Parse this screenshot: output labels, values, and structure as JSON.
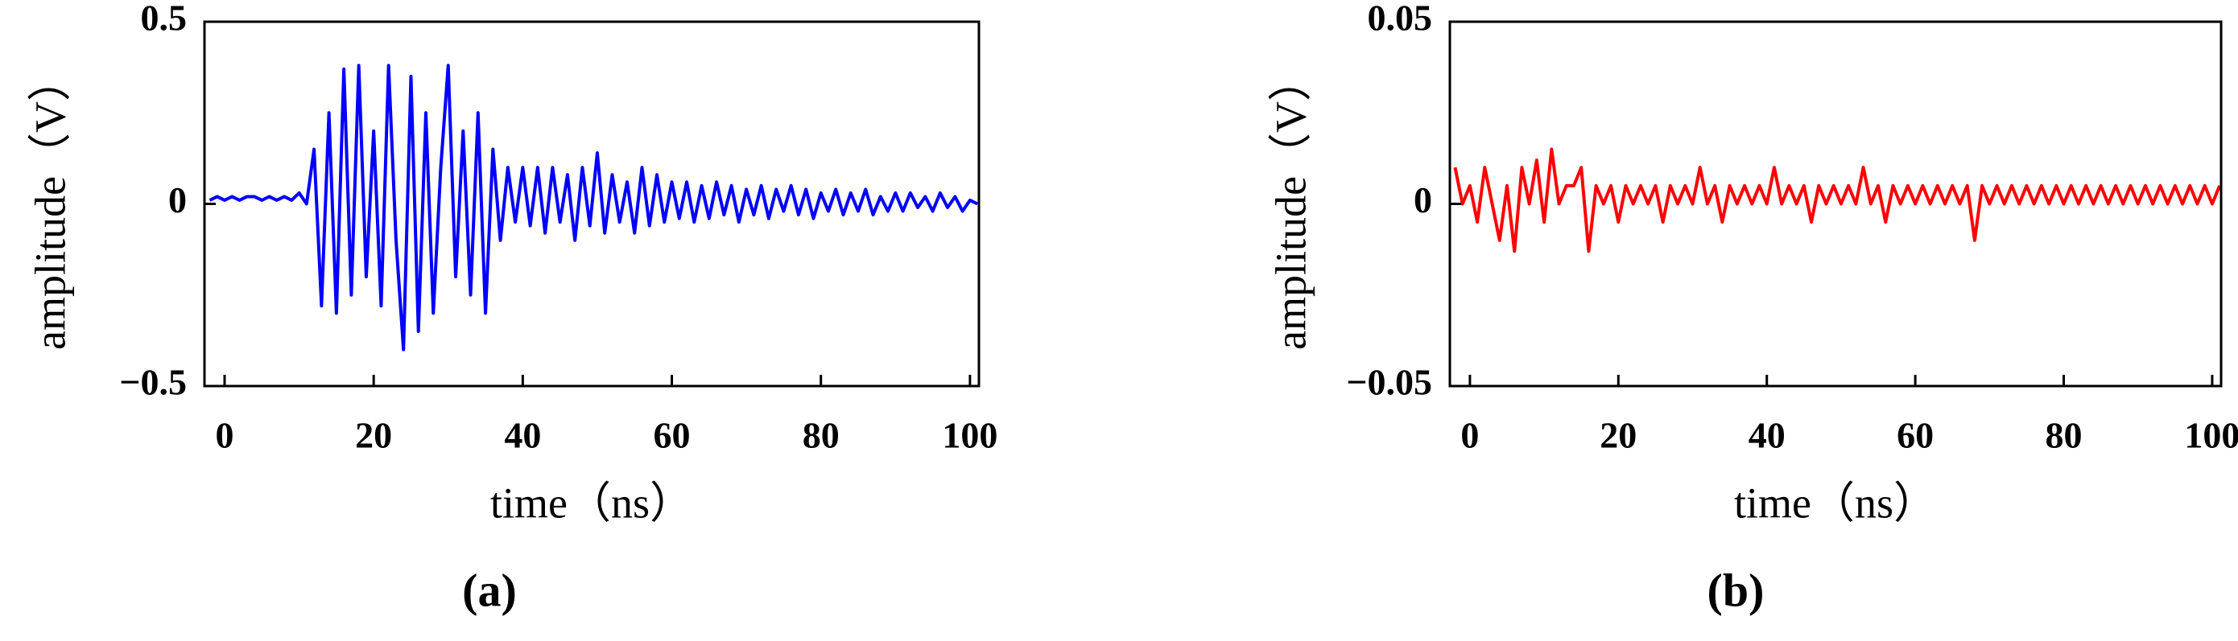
{
  "chart_data": [
    {
      "type": "line",
      "panel_label": "(a)",
      "x_label": "time（ns）",
      "y_label": "amplitude（V）",
      "color": "#0000ff",
      "xlim": [
        -2.7,
        101.2
      ],
      "ylim": [
        -0.5,
        0.5
      ],
      "xticks": [
        0,
        20,
        40,
        60,
        80,
        100
      ],
      "yticks": [
        {
          "value": -0.5,
          "label": "−0.5"
        },
        0,
        0.5
      ],
      "x": [
        -2,
        -1,
        0,
        1,
        2,
        3,
        4,
        5,
        6,
        7,
        8,
        9,
        10,
        11,
        12,
        13,
        14,
        15,
        16,
        17,
        18,
        19,
        20,
        21,
        22,
        23,
        24,
        25,
        26,
        27,
        28,
        29,
        30,
        31,
        32,
        33,
        34,
        35,
        36,
        37,
        38,
        39,
        40,
        41,
        42,
        43,
        44,
        45,
        46,
        47,
        48,
        49,
        50,
        51,
        52,
        53,
        54,
        55,
        56,
        57,
        58,
        59,
        60,
        61,
        62,
        63,
        64,
        65,
        66,
        67,
        68,
        69,
        70,
        71,
        72,
        73,
        74,
        75,
        76,
        77,
        78,
        79,
        80,
        81,
        82,
        83,
        84,
        85,
        86,
        87,
        88,
        89,
        90,
        91,
        92,
        93,
        94,
        95,
        96,
        97,
        98,
        99,
        100,
        101
      ],
      "values": [
        0.01,
        0.02,
        0.01,
        0.02,
        0.01,
        0.02,
        0.02,
        0.01,
        0.02,
        0.01,
        0.02,
        0.01,
        0.03,
        0.0,
        0.15,
        -0.28,
        0.25,
        -0.3,
        0.37,
        -0.25,
        0.38,
        -0.2,
        0.2,
        -0.28,
        0.38,
        -0.1,
        -0.4,
        0.35,
        -0.35,
        0.25,
        -0.3,
        0.1,
        0.38,
        -0.2,
        0.2,
        -0.25,
        0.25,
        -0.3,
        0.15,
        -0.1,
        0.1,
        -0.05,
        0.1,
        -0.06,
        0.1,
        -0.08,
        0.1,
        -0.05,
        0.08,
        -0.1,
        0.1,
        -0.06,
        0.14,
        -0.08,
        0.08,
        -0.05,
        0.06,
        -0.08,
        0.1,
        -0.06,
        0.08,
        -0.05,
        0.06,
        -0.04,
        0.06,
        -0.05,
        0.05,
        -0.04,
        0.06,
        -0.03,
        0.05,
        -0.05,
        0.04,
        -0.03,
        0.05,
        -0.04,
        0.04,
        -0.02,
        0.05,
        -0.03,
        0.04,
        -0.04,
        0.03,
        -0.02,
        0.04,
        -0.03,
        0.03,
        -0.02,
        0.04,
        -0.03,
        0.02,
        -0.02,
        0.03,
        -0.02,
        0.03,
        -0.01,
        0.02,
        -0.02,
        0.03,
        -0.01,
        0.02,
        -0.02,
        0.01,
        0.0
      ]
    },
    {
      "type": "line",
      "panel_label": "(b)",
      "x_label": "time（ns）",
      "y_label": "amplitude（V）",
      "color": "#ff0000",
      "xlim": [
        -2.7,
        101.2
      ],
      "ylim": [
        -0.05,
        0.05
      ],
      "xticks": [
        0,
        20,
        40,
        60,
        80,
        100
      ],
      "yticks": [
        {
          "value": -0.05,
          "label": "−0.05"
        },
        0,
        0.05
      ],
      "x": [
        -2,
        -1,
        0,
        1,
        2,
        3,
        4,
        5,
        6,
        7,
        8,
        9,
        10,
        11,
        12,
        13,
        14,
        15,
        16,
        17,
        18,
        19,
        20,
        21,
        22,
        23,
        24,
        25,
        26,
        27,
        28,
        29,
        30,
        31,
        32,
        33,
        34,
        35,
        36,
        37,
        38,
        39,
        40,
        41,
        42,
        43,
        44,
        45,
        46,
        47,
        48,
        49,
        50,
        51,
        52,
        53,
        54,
        55,
        56,
        57,
        58,
        59,
        60,
        61,
        62,
        63,
        64,
        65,
        66,
        67,
        68,
        69,
        70,
        71,
        72,
        73,
        74,
        75,
        76,
        77,
        78,
        79,
        80,
        81,
        82,
        83,
        84,
        85,
        86,
        87,
        88,
        89,
        90,
        91,
        92,
        93,
        94,
        95,
        96,
        97,
        98,
        99,
        100,
        101
      ],
      "values": [
        0.01,
        0,
        0.005,
        -0.005,
        0.01,
        0,
        -0.01,
        0.005,
        -0.013,
        0.01,
        0,
        0.012,
        -0.005,
        0.015,
        0,
        0.005,
        0.005,
        0.01,
        -0.013,
        0.005,
        0,
        0.005,
        -0.005,
        0.005,
        0,
        0.005,
        0,
        0.005,
        -0.005,
        0.005,
        0,
        0.005,
        0,
        0.01,
        0,
        0.005,
        -0.005,
        0.005,
        0,
        0.005,
        0,
        0.005,
        0,
        0.01,
        0,
        0.005,
        0,
        0.005,
        -0.005,
        0.005,
        0,
        0.005,
        0,
        0.005,
        0,
        0.01,
        0,
        0.005,
        -0.005,
        0.005,
        0,
        0.005,
        0,
        0.005,
        0,
        0.005,
        0,
        0.005,
        0,
        0.005,
        -0.01,
        0.005,
        0,
        0.005,
        0,
        0.005,
        0,
        0.005,
        0,
        0.005,
        0,
        0.005,
        0,
        0.005,
        0,
        0.005,
        0,
        0.005,
        0,
        0.005,
        0,
        0.005,
        0,
        0.005,
        0,
        0.005,
        0,
        0.005,
        0,
        0.005,
        0,
        0.005,
        0,
        0.005
      ]
    }
  ]
}
